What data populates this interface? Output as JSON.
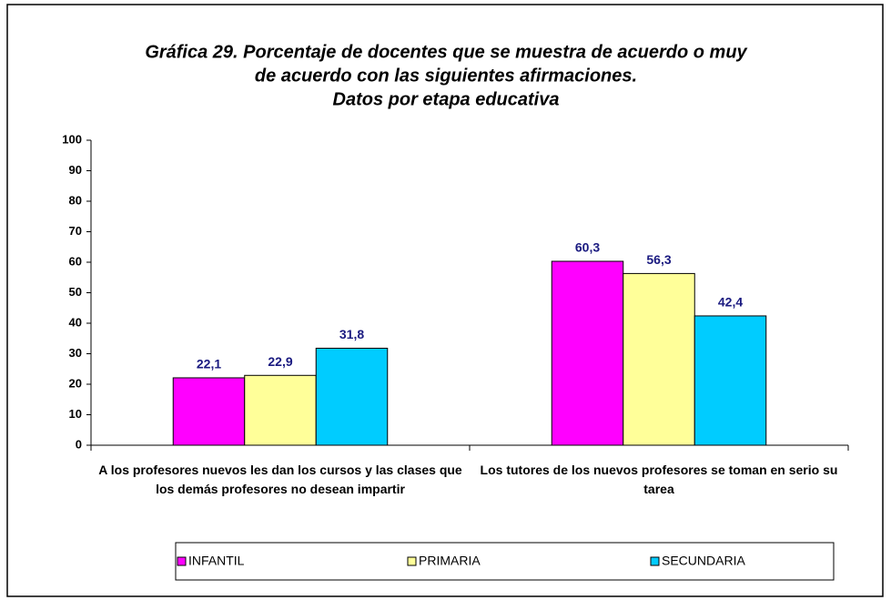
{
  "chart_data": {
    "type": "bar",
    "title": [
      "Gráfica 29. Porcentaje de docentes que se muestra de acuerdo o muy",
      "de acuerdo con las siguientes afirmaciones.",
      "Datos por etapa educativa"
    ],
    "categories": [
      "A los profesores nuevos les dan los cursos y las clases que los demás profesores no desean impartir",
      "Los tutores de los nuevos profesores se toman en serio su tarea"
    ],
    "series": [
      {
        "name": "INFANTIL",
        "color": "#ff00ff",
        "values": [
          22.1,
          60.3
        ],
        "value_labels": [
          "22,1",
          "60,3"
        ]
      },
      {
        "name": "PRIMARIA",
        "color": "#ffff99",
        "values": [
          22.9,
          56.3
        ],
        "value_labels": [
          "22,9",
          "56,3"
        ]
      },
      {
        "name": "SECUNDARIA",
        "color": "#00ccff",
        "values": [
          31.8,
          42.4
        ],
        "value_labels": [
          "31,8",
          "42,4"
        ]
      }
    ],
    "ylim": [
      0,
      100
    ],
    "yticks": [
      0,
      10,
      20,
      30,
      40,
      50,
      60,
      70,
      80,
      90,
      100
    ],
    "legend": "bottom"
  }
}
